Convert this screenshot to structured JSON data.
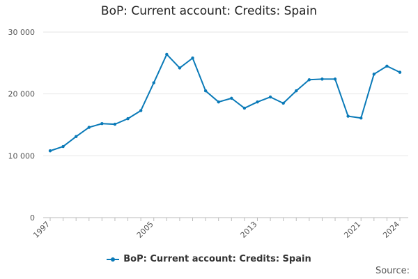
{
  "title": "BoP: Current account: Credits: Spain",
  "source_label": "Source:",
  "colors": {
    "series": "#0a7ab8",
    "grid": "#e6e6e6",
    "axis": "#bbbbbb",
    "text": "#555555"
  },
  "chart_data": {
    "type": "line",
    "title": "BoP: Current account: Credits: Spain",
    "xlabel": "",
    "ylabel": "",
    "ylim": [
      0,
      30000
    ],
    "y_ticks": [
      0,
      10000,
      20000,
      30000
    ],
    "y_tick_labels": [
      "0",
      "10 000",
      "20 000",
      "30 000"
    ],
    "x_ticks": [
      1997,
      2005,
      2013,
      2021,
      2024
    ],
    "x_tick_labels": [
      "1997",
      "2005",
      "2013",
      "2021",
      "2024"
    ],
    "grid": true,
    "legend": "bottom-center",
    "x": [
      1997,
      1998,
      1999,
      2000,
      2001,
      2002,
      2003,
      2004,
      2005,
      2006,
      2007,
      2008,
      2009,
      2010,
      2011,
      2012,
      2013,
      2014,
      2015,
      2016,
      2017,
      2018,
      2019,
      2020,
      2021,
      2022,
      2023,
      2024
    ],
    "series": [
      {
        "name": "BoP: Current account: Credits: Spain",
        "values": [
          10800,
          11500,
          13100,
          14600,
          15200,
          15100,
          16000,
          17300,
          21800,
          26400,
          24200,
          25800,
          20500,
          18700,
          19300,
          17700,
          18700,
          19500,
          18500,
          20500,
          22300,
          22400,
          22400,
          16400,
          16100,
          23200,
          24500,
          23500
        ]
      }
    ]
  }
}
